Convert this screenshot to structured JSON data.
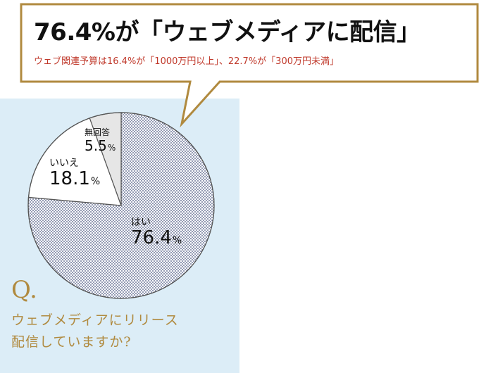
{
  "headline": "76.4%が「ウェブメディアに配信」",
  "subline": "ウェブ関連予算は16.4%が「1000万円以上」、22.7%が「300万円未満」",
  "question": {
    "mark": "Q.",
    "text_line1": "ウェブメディアにリリース",
    "text_line2": "配信していますか?"
  },
  "colors": {
    "accent_gold": "#b08a3f",
    "subline_red": "#c0392b",
    "panel_blue": "#dcedf7"
  },
  "chart_data": {
    "type": "pie",
    "slices": [
      {
        "label": "はい",
        "value": 76.4,
        "value_text": "76.4",
        "unit": "%",
        "fill": "dots"
      },
      {
        "label": "いいえ",
        "value": 18.1,
        "value_text": "18.1",
        "unit": "%",
        "fill": "#ffffff"
      },
      {
        "label": "無回答",
        "value": 5.5,
        "value_text": "5.5",
        "unit": "%",
        "fill": "#e6e6e6"
      }
    ]
  }
}
